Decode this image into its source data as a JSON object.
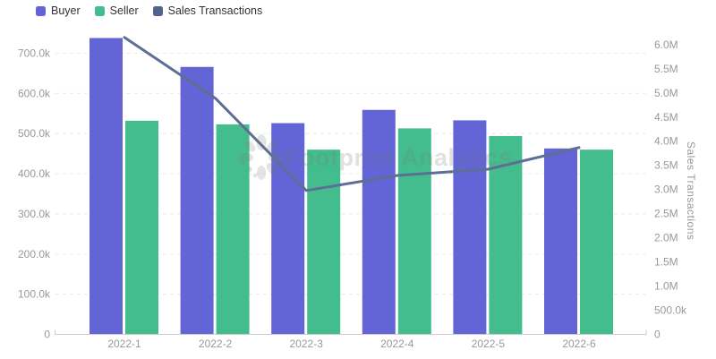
{
  "legend": {
    "items": [
      {
        "label": "Buyer",
        "color": "#6365d6"
      },
      {
        "label": "Seller",
        "color": "#44bd8e"
      },
      {
        "label": "Sales Transactions",
        "color": "#53648c"
      }
    ]
  },
  "watermark": {
    "text": "Footprint Analytics"
  },
  "right_axis_title": "Sales Transactions",
  "left_axis_ticks": [
    "0",
    "100.0k",
    "200.0k",
    "300.0k",
    "400.0k",
    "500.0k",
    "600.0k",
    "700.0k"
  ],
  "right_axis_ticks": [
    "0",
    "500.0k",
    "1.0M",
    "1.5M",
    "2.0M",
    "2.5M",
    "3.0M",
    "3.5M",
    "4.0M",
    "4.5M",
    "5.0M",
    "5.5M",
    "6.0M"
  ],
  "chart_data": {
    "type": "bar+line",
    "categories": [
      "2022-1",
      "2022-2",
      "2022-3",
      "2022-4",
      "2022-5",
      "2022-6"
    ],
    "series": [
      {
        "name": "Buyer",
        "type": "bar",
        "axis": "left",
        "color": "#6365d6",
        "values": [
          738000,
          666000,
          526000,
          559000,
          533000,
          463000
        ]
      },
      {
        "name": "Seller",
        "type": "bar",
        "axis": "left",
        "color": "#44bd8e",
        "values": [
          532000,
          523000,
          460000,
          513000,
          494000,
          460000
        ]
      },
      {
        "name": "Sales Transactions",
        "type": "line",
        "axis": "right",
        "color": "#5d6f94",
        "values": [
          6150000,
          4890000,
          2980000,
          3290000,
          3420000,
          3870000
        ]
      }
    ],
    "left_axis": {
      "label": "",
      "range": [
        0,
        700000
      ],
      "tick_step": 100000,
      "format": "k"
    },
    "right_axis": {
      "label": "Sales Transactions",
      "range": [
        0,
        6000000
      ],
      "tick_step": 500000,
      "format": "M"
    },
    "grid": true,
    "legend_position": "top-left",
    "title": ""
  },
  "colors": {
    "background": "#ffffff",
    "axis_line": "#cccccc",
    "gridline": "#e9e9e9",
    "axis_text": "#999999",
    "legend_text": "#333333"
  }
}
